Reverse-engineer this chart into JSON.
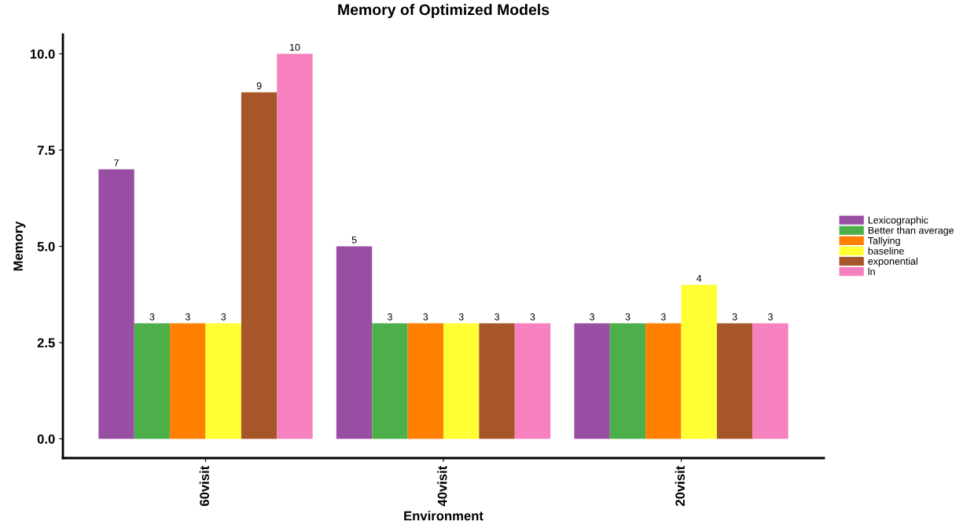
{
  "chart_data": {
    "type": "bar",
    "title": "Memory of Optimized Models",
    "xlabel": "Environment",
    "ylabel": "Memory",
    "categories": [
      "60visit",
      "40visit",
      "20visit"
    ],
    "series": [
      {
        "name": "Lexicographic",
        "color": "#984ea3",
        "values": [
          7,
          5,
          3
        ]
      },
      {
        "name": "Better than average",
        "color": "#4daf4a",
        "values": [
          3,
          3,
          3
        ]
      },
      {
        "name": "Tallying",
        "color": "#ff7f00",
        "values": [
          3,
          3,
          3
        ]
      },
      {
        "name": "baseline",
        "color": "#ffff33",
        "values": [
          3,
          3,
          4
        ]
      },
      {
        "name": "exponential",
        "color": "#a65628",
        "values": [
          9,
          3,
          3
        ]
      },
      {
        "name": "ln",
        "color": "#f781bf",
        "values": [
          10,
          3,
          3
        ]
      }
    ],
    "ylim": [
      -0.5,
      10.5
    ],
    "yticks": [
      {
        "value": 0,
        "label": "0.0"
      },
      {
        "value": 2.5,
        "label": "2.5"
      },
      {
        "value": 5,
        "label": "5.0"
      },
      {
        "value": 7.5,
        "label": "7.5"
      },
      {
        "value": 10,
        "label": "10.0"
      }
    ],
    "data_labels": true,
    "grid": false,
    "legend": "right"
  }
}
